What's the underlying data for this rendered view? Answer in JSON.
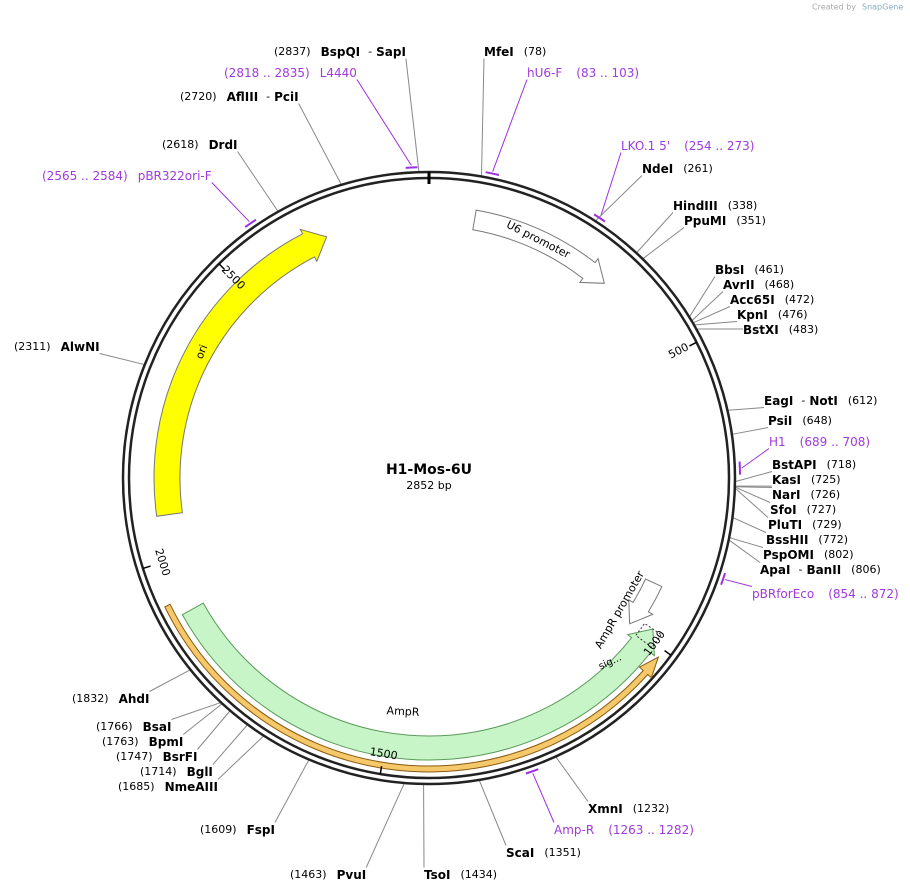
{
  "header": {
    "created_by": "Created by",
    "brand": "SnapGene"
  },
  "map": {
    "title": "H1-Mos-6U",
    "length": {
      "value": 2852,
      "label": "2852 bp"
    },
    "ticks": [
      500,
      1000,
      1500,
      2000,
      2500
    ],
    "name_separator": "-",
    "features": [
      {
        "name": "U6 promoter"
      },
      {
        "name": "ori"
      },
      {
        "name": "AmpR"
      },
      {
        "name": "AmpR promoter"
      },
      {
        "name": "sig..."
      }
    ],
    "sites": [
      {
        "names": [
          "BspQI",
          "SapI"
        ],
        "position": {
          "value": 2837,
          "label": "(2837)"
        }
      },
      {
        "names": [
          "MfeI"
        ],
        "position": {
          "value": 78,
          "label": "(78)"
        }
      },
      {
        "names": [
          "NdeI"
        ],
        "position": {
          "value": 261,
          "label": "(261)"
        }
      },
      {
        "names": [
          "HindIII"
        ],
        "position": {
          "value": 338,
          "label": "(338)"
        }
      },
      {
        "names": [
          "PpuMI"
        ],
        "position": {
          "value": 351,
          "label": "(351)"
        }
      },
      {
        "names": [
          "BbsI"
        ],
        "position": {
          "value": 461,
          "label": "(461)"
        }
      },
      {
        "names": [
          "AvrII"
        ],
        "position": {
          "value": 468,
          "label": "(468)"
        }
      },
      {
        "names": [
          "Acc65I"
        ],
        "position": {
          "value": 472,
          "label": "(472)"
        }
      },
      {
        "names": [
          "KpnI"
        ],
        "position": {
          "value": 476,
          "label": "(476)"
        }
      },
      {
        "names": [
          "BstXI"
        ],
        "position": {
          "value": 483,
          "label": "(483)"
        }
      },
      {
        "names": [
          "EagI",
          "NotI"
        ],
        "position": {
          "value": 612,
          "label": "(612)"
        }
      },
      {
        "names": [
          "PsiI"
        ],
        "position": {
          "value": 648,
          "label": "(648)"
        }
      },
      {
        "names": [
          "BstAPI"
        ],
        "position": {
          "value": 718,
          "label": "(718)"
        }
      },
      {
        "names": [
          "KasI"
        ],
        "position": {
          "value": 725,
          "label": "(725)"
        }
      },
      {
        "names": [
          "NarI"
        ],
        "position": {
          "value": 726,
          "label": "(726)"
        }
      },
      {
        "names": [
          "SfoI"
        ],
        "position": {
          "value": 727,
          "label": "(727)"
        }
      },
      {
        "names": [
          "PluTI"
        ],
        "position": {
          "value": 729,
          "label": "(729)"
        }
      },
      {
        "names": [
          "BssHII"
        ],
        "position": {
          "value": 772,
          "label": "(772)"
        }
      },
      {
        "names": [
          "PspOMI"
        ],
        "position": {
          "value": 802,
          "label": "(802)"
        }
      },
      {
        "names": [
          "ApaI",
          "BanII"
        ],
        "position": {
          "value": 806,
          "label": "(806)"
        }
      },
      {
        "names": [
          "XmnI"
        ],
        "position": {
          "value": 1232,
          "label": "(1232)"
        }
      },
      {
        "names": [
          "ScaI"
        ],
        "position": {
          "value": 1351,
          "label": "(1351)"
        }
      },
      {
        "names": [
          "TsoI"
        ],
        "position": {
          "value": 1434,
          "label": "(1434)"
        }
      },
      {
        "names": [
          "PvuI"
        ],
        "position": {
          "value": 1463,
          "label": "(1463)"
        }
      },
      {
        "names": [
          "FspI"
        ],
        "position": {
          "value": 1609,
          "label": "(1609)"
        }
      },
      {
        "names": [
          "NmeAIII"
        ],
        "position": {
          "value": 1685,
          "label": "(1685)"
        }
      },
      {
        "names": [
          "BglI"
        ],
        "position": {
          "value": 1714,
          "label": "(1714)"
        }
      },
      {
        "names": [
          "BsrFI"
        ],
        "position": {
          "value": 1747,
          "label": "(1747)"
        }
      },
      {
        "names": [
          "BpmI"
        ],
        "position": {
          "value": 1763,
          "label": "(1763)"
        }
      },
      {
        "names": [
          "BsaI"
        ],
        "position": {
          "value": 1766,
          "label": "(1766)"
        }
      },
      {
        "names": [
          "AhdI"
        ],
        "position": {
          "value": 1832,
          "label": "(1832)"
        }
      },
      {
        "names": [
          "AlwNI"
        ],
        "position": {
          "value": 2311,
          "label": "(2311)"
        }
      },
      {
        "names": [
          "DrdI"
        ],
        "position": {
          "value": 2618,
          "label": "(2618)"
        }
      },
      {
        "names": [
          "AflIII",
          "PciI"
        ],
        "position": {
          "value": 2720,
          "label": "(2720)"
        }
      }
    ],
    "primers": [
      {
        "name": "L4440",
        "location": {
          "start": 2818,
          "end": 2835,
          "label": "(2818 .. 2835)"
        }
      },
      {
        "name": "hU6-F",
        "location": {
          "start": 83,
          "end": 103,
          "label": "(83 .. 103)"
        }
      },
      {
        "name": "LKO.1 5'",
        "location": {
          "start": 254,
          "end": 273,
          "label": "(254 .. 273)"
        }
      },
      {
        "name": "H1",
        "location": {
          "start": 689,
          "end": 708,
          "label": "(689 .. 708)"
        }
      },
      {
        "name": "pBRforEco",
        "location": {
          "start": 854,
          "end": 872,
          "label": "(854 .. 872)"
        }
      },
      {
        "name": "Amp-R",
        "location": {
          "start": 1263,
          "end": 1282,
          "label": "(1263 .. 1282)"
        }
      },
      {
        "name": "pBR322ori-F",
        "location": {
          "start": 2565,
          "end": 2584,
          "label": "(2565 .. 2584)"
        }
      }
    ]
  }
}
